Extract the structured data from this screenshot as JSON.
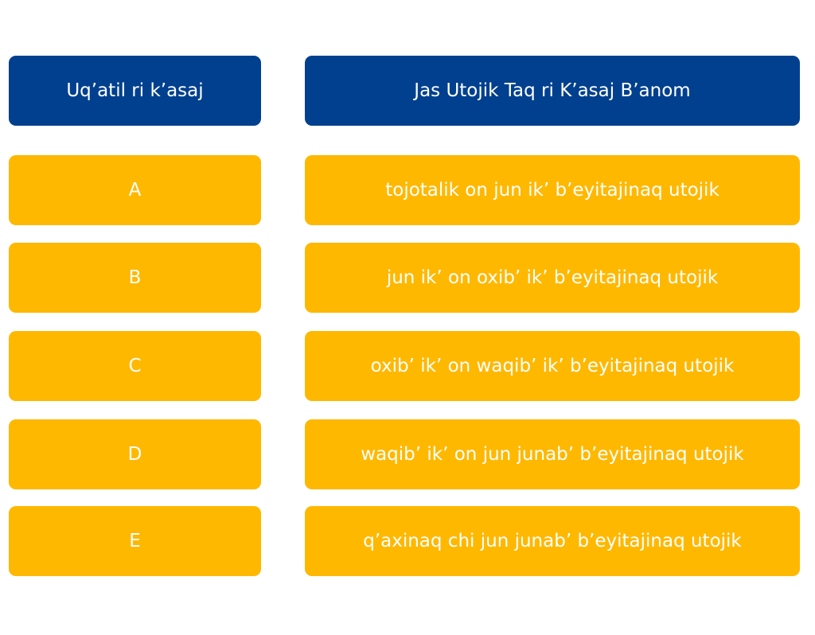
{
  "colors": {
    "header": "#01408e",
    "cell": "#ffb800",
    "text": "#ffffff"
  },
  "header": {
    "left": "Uq’atil ri k’asaj",
    "right": "Jas Utojik Taq ri K’asaj B’anom"
  },
  "rows": [
    {
      "grade": "A",
      "description": "tojotalik on jun ik’ b’eyitajinaq utojik"
    },
    {
      "grade": "B",
      "description": "jun ik’ on oxib’ ik’ b’eyitajinaq utojik"
    },
    {
      "grade": "C",
      "description": "oxib’ ik’ on waqib’ ik’ b’eyitajinaq utojik"
    },
    {
      "grade": "D",
      "description": "waqib’ ik’ on jun junab’ b’eyitajinaq utojik"
    },
    {
      "grade": "E",
      "description": "q’axinaq chi jun junab’ b’eyitajinaq utojik"
    }
  ]
}
